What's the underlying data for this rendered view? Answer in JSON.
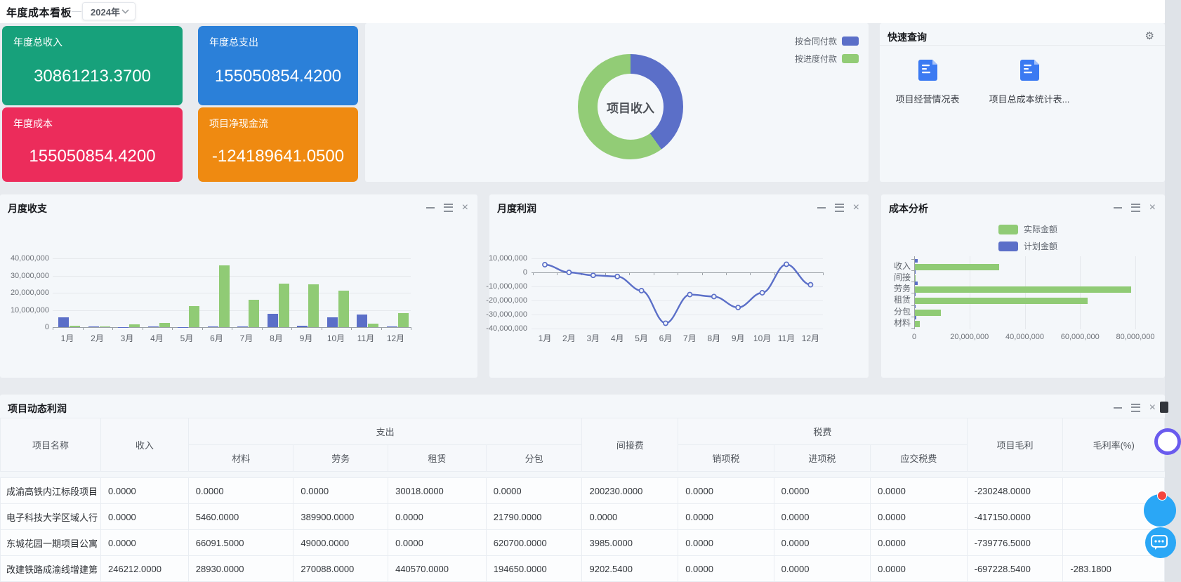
{
  "page": {
    "title": "年度成本看板",
    "year_selector": "2024年"
  },
  "icons": {
    "year_dropdown": "chevron-down-icon",
    "quick_query_settings": "gear-icon",
    "gear_glyph": "⚙",
    "panel_controls": [
      "minimize-icon",
      "menu-icon",
      "close-icon"
    ],
    "quick_query_item": "file-document-icon",
    "floating": [
      "notification-badge",
      "chat-bubble-icon"
    ]
  },
  "kpis": [
    {
      "label": "年度总收入",
      "value": "30861213.3700",
      "color": "#17a17b"
    },
    {
      "label": "年度总支出",
      "value": "155050854.4200",
      "color": "#2b80d9"
    },
    {
      "label": "年度成本",
      "value": "155050854.4200",
      "color": "#ec2c5b"
    },
    {
      "label": "项目净现金流",
      "value": "-124189641.0500",
      "color": "#ef8a11"
    }
  ],
  "quick_query": {
    "title": "快速查询",
    "items": [
      {
        "label": "项目经营情况表"
      },
      {
        "label": "项目总成本统计表..."
      }
    ]
  },
  "panel_titles": {
    "monthly_balance": "月度收支",
    "monthly_profit": "月度利润",
    "cost_analysis": "成本分析",
    "project_profit": "项目动态利润"
  },
  "chart_data": [
    {
      "id": "income_donut",
      "type": "pie",
      "center_label": "项目收入",
      "legend_position": "top-right",
      "slices": [
        {
          "name": "按合同付款",
          "color": "#5b6fc8",
          "percent_est": 40
        },
        {
          "name": "按进度付款",
          "color": "#92cc76",
          "percent_est": 60
        }
      ]
    },
    {
      "id": "monthly_balance",
      "type": "bar",
      "title": "月度收支",
      "categories": [
        "1月",
        "2月",
        "3月",
        "4月",
        "5月",
        "6月",
        "7月",
        "8月",
        "9月",
        "10月",
        "11月",
        "12月"
      ],
      "series": [
        {
          "name": "blue_series",
          "color": "#5b6fc8",
          "values": [
            5900000,
            400000,
            100000,
            400000,
            200000,
            500000,
            300000,
            7900000,
            900000,
            5800000,
            7400000,
            300000
          ]
        },
        {
          "name": "green_series",
          "color": "#90cb75",
          "values": [
            800000,
            400000,
            1500000,
            2400000,
            12300000,
            36200000,
            16100000,
            25400000,
            24900000,
            21200000,
            2000000,
            8100000
          ]
        }
      ],
      "ylim": [
        0,
        40000000
      ],
      "yticks": [
        "40,000,000",
        "30,000,000",
        "20,000,000",
        "10,000,000",
        "0"
      ],
      "grid": true
    },
    {
      "id": "monthly_profit",
      "type": "line",
      "title": "月度利润",
      "categories": [
        "1月",
        "2月",
        "3月",
        "4月",
        "5月",
        "6月",
        "7月",
        "8月",
        "9月",
        "10月",
        "11月",
        "12月"
      ],
      "series": [
        {
          "name": "profit",
          "color": "#5b6fc8",
          "values": [
            5500000,
            0,
            -2100000,
            -2900000,
            -13000000,
            -36200000,
            -15800000,
            -17200000,
            -25000000,
            -14500000,
            5800000,
            -8800000
          ]
        }
      ],
      "ylim": [
        -40000000,
        10000000
      ],
      "yticks": [
        "10,000,000",
        "0",
        "-10,000,000",
        "-20,000,000",
        "-30,000,000",
        "-40,000,000"
      ],
      "smooth": true,
      "grid": true
    },
    {
      "id": "cost_analysis",
      "type": "bar-horizontal",
      "title": "成本分析",
      "categories": [
        "收入",
        "间接",
        "劳务",
        "租赁",
        "分包",
        "材料"
      ],
      "series": [
        {
          "name": "实际金额",
          "color": "#90cb75",
          "values": [
            30500000,
            150000,
            78200000,
            62500000,
            9500000,
            1800000
          ]
        },
        {
          "name": "计划金额",
          "color": "#5b6fc8",
          "values": [
            1000000,
            200000,
            1100000,
            250000,
            300000,
            500000
          ]
        }
      ],
      "xlim": [
        0,
        80000000
      ],
      "xticks": [
        "0",
        "20,000,000",
        "40,000,000",
        "60,000,000",
        "80,000,000"
      ],
      "legend_position": "top"
    }
  ],
  "table": {
    "group_headers": {
      "expense": "支出",
      "tax": "税费"
    },
    "columns": [
      "项目名称",
      "收入",
      "材料",
      "劳务",
      "租赁",
      "分包",
      "间接费",
      "销项税",
      "进项税",
      "应交税费",
      "项目毛利",
      "毛利率(%)"
    ],
    "rows": [
      [
        "成渝高铁内江标段项目",
        "0.0000",
        "0.0000",
        "0.0000",
        "30018.0000",
        "0.0000",
        "200230.0000",
        "0.0000",
        "0.0000",
        "0.0000",
        "-230248.0000",
        ""
      ],
      [
        "电子科技大学区域人行",
        "0.0000",
        "5460.0000",
        "389900.0000",
        "0.0000",
        "21790.0000",
        "0.0000",
        "0.0000",
        "0.0000",
        "0.0000",
        "-417150.0000",
        ""
      ],
      [
        "东城花园一期项目公寓",
        "0.0000",
        "66091.5000",
        "49000.0000",
        "0.0000",
        "620700.0000",
        "3985.0000",
        "0.0000",
        "0.0000",
        "0.0000",
        "-739776.5000",
        ""
      ],
      [
        "改建铁路成渝线增建第",
        "246212.0000",
        "28930.0000",
        "270088.0000",
        "440570.0000",
        "194650.0000",
        "9202.5400",
        "0.0000",
        "0.0000",
        "0.0000",
        "-697228.5400",
        "-283.1800"
      ]
    ]
  }
}
